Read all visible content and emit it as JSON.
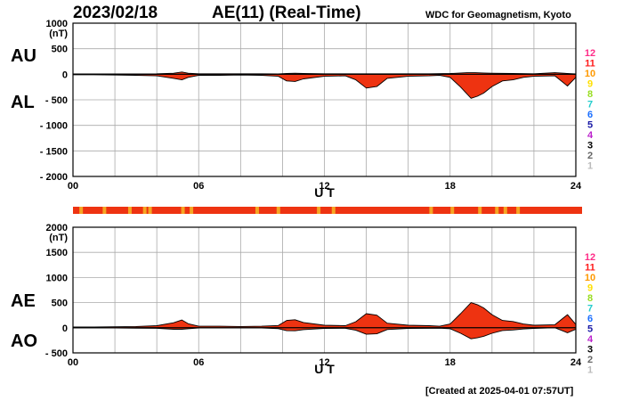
{
  "header": {
    "date": "2023/02/18",
    "title": "AE(11) (Real-Time)",
    "source": "WDC for Geomagnetism, Kyoto",
    "created": "[Created at 2025-04-01 07:57UT]"
  },
  "colors": {
    "fill": "#ee3311",
    "fill_light": "#f5a623",
    "stripe_base": "#ee3311",
    "stripe_mark": "#f5a623",
    "grid": "#aaaaaa"
  },
  "station_legend": [
    {
      "label": "12",
      "color": "#ff2c88"
    },
    {
      "label": "11",
      "color": "#ff1a1a"
    },
    {
      "label": "10",
      "color": "#ff9900"
    },
    {
      "label": "9",
      "color": "#ffe000"
    },
    {
      "label": "8",
      "color": "#99dd22"
    },
    {
      "label": "7",
      "color": "#22cccc"
    },
    {
      "label": "6",
      "color": "#1a6eff"
    },
    {
      "label": "5",
      "color": "#1a1aa6"
    },
    {
      "label": "4",
      "color": "#bb22cc"
    },
    {
      "label": "3",
      "color": "#000000"
    },
    {
      "label": "2",
      "color": "#666666"
    },
    {
      "label": "1",
      "color": "#bbbbbb"
    }
  ],
  "chart_data": [
    {
      "type": "area",
      "panel": "AU/AL",
      "side_labels": [
        "AU",
        "AL"
      ],
      "unit": "(nT)",
      "xlabel": "U T",
      "x_ticks": [
        "00",
        "06",
        "12",
        "18",
        "24"
      ],
      "x_range": [
        0,
        24
      ],
      "y_ticks": [
        "1000",
        "500",
        "0",
        "- 500",
        "- 1000",
        "- 1500",
        "- 2000"
      ],
      "y_tick_values": [
        1000,
        500,
        0,
        -500,
        -1000,
        -1500,
        -2000
      ],
      "ylim": [
        -2000,
        1000
      ],
      "grid": true,
      "series": [
        {
          "name": "AU",
          "x": [
            0,
            1,
            2,
            3,
            4,
            4.8,
            5.2,
            5.5,
            6,
            7,
            8,
            9,
            9.8,
            10.2,
            10.6,
            11,
            12,
            13,
            14,
            15,
            16,
            17,
            18,
            18.8,
            19.2,
            19.6,
            20,
            21,
            22,
            23,
            24
          ],
          "y": [
            5,
            5,
            5,
            5,
            10,
            20,
            45,
            20,
            10,
            10,
            10,
            10,
            5,
            15,
            20,
            15,
            10,
            10,
            10,
            10,
            10,
            10,
            15,
            30,
            30,
            25,
            20,
            15,
            10,
            30,
            5
          ]
        },
        {
          "name": "AL",
          "x": [
            0,
            1,
            2,
            3,
            4,
            4.8,
            5.2,
            5.5,
            6,
            7,
            8,
            9,
            9.8,
            10.2,
            10.6,
            11,
            12,
            13,
            13.5,
            14,
            14.5,
            15,
            16,
            17,
            17.5,
            18,
            18.5,
            19,
            19.3,
            19.6,
            20,
            20.5,
            21,
            21.5,
            22,
            23,
            23.6,
            24
          ],
          "y": [
            -10,
            -10,
            -15,
            -20,
            -30,
            -80,
            -110,
            -60,
            -20,
            -20,
            -15,
            -20,
            -40,
            -130,
            -140,
            -90,
            -40,
            -30,
            -110,
            -270,
            -240,
            -80,
            -40,
            -30,
            -20,
            -60,
            -250,
            -470,
            -430,
            -370,
            -240,
            -130,
            -110,
            -60,
            -40,
            -30,
            -230,
            -60
          ]
        }
      ]
    },
    {
      "type": "area",
      "panel": "AE/AO",
      "side_labels": [
        "AE",
        "AO"
      ],
      "unit": "(nT)",
      "xlabel": "U T",
      "x_ticks": [
        "00",
        "06",
        "12",
        "18",
        "24"
      ],
      "x_range": [
        0,
        24
      ],
      "y_ticks": [
        "2000",
        "1500",
        "1000",
        "500",
        "0",
        "- 500"
      ],
      "y_tick_values": [
        2000,
        1500,
        1000,
        500,
        0,
        -500
      ],
      "ylim": [
        -500,
        2000
      ],
      "grid": true,
      "series": [
        {
          "name": "AE",
          "x": [
            0,
            1,
            2,
            3,
            4,
            4.8,
            5.2,
            5.5,
            6,
            7,
            8,
            9,
            9.8,
            10.2,
            10.6,
            11,
            12,
            13,
            13.5,
            14,
            14.5,
            15,
            16,
            17,
            17.5,
            18,
            18.5,
            19,
            19.3,
            19.6,
            20,
            20.5,
            21,
            21.5,
            22,
            23,
            23.6,
            24
          ],
          "y": [
            15,
            15,
            20,
            25,
            40,
            100,
            155,
            80,
            30,
            30,
            25,
            30,
            45,
            145,
            160,
            105,
            50,
            40,
            120,
            280,
            250,
            90,
            50,
            40,
            30,
            75,
            280,
            500,
            460,
            395,
            260,
            145,
            125,
            75,
            50,
            60,
            260,
            65
          ]
        },
        {
          "name": "AO",
          "x": [
            0,
            1,
            2,
            3,
            4,
            4.8,
            5.2,
            5.5,
            6,
            7,
            8,
            9,
            9.8,
            10.2,
            10.6,
            11,
            12,
            13,
            13.5,
            14,
            14.5,
            15,
            16,
            17,
            17.5,
            18,
            18.5,
            19,
            19.3,
            19.6,
            20,
            20.5,
            21,
            21.5,
            22,
            23,
            23.6,
            24
          ],
          "y": [
            -3,
            -3,
            -5,
            -8,
            -10,
            -30,
            -30,
            -20,
            -5,
            -5,
            -3,
            -5,
            -18,
            -58,
            -60,
            -38,
            -15,
            -10,
            -50,
            -130,
            -120,
            -35,
            -15,
            -10,
            -8,
            -20,
            -110,
            -220,
            -200,
            -170,
            -110,
            -55,
            -45,
            -25,
            -15,
            0,
            -100,
            -28
          ]
        }
      ]
    },
    {
      "type": "status_bar",
      "panel": "station-coverage",
      "x_range": [
        0,
        24
      ],
      "marks": [
        0.3,
        1.4,
        2.6,
        3.3,
        3.55,
        5.1,
        5.5,
        8.6,
        9.6,
        11.5,
        12.2,
        16.8,
        17.8,
        19.1,
        19.9,
        20.3,
        20.9
      ]
    }
  ]
}
